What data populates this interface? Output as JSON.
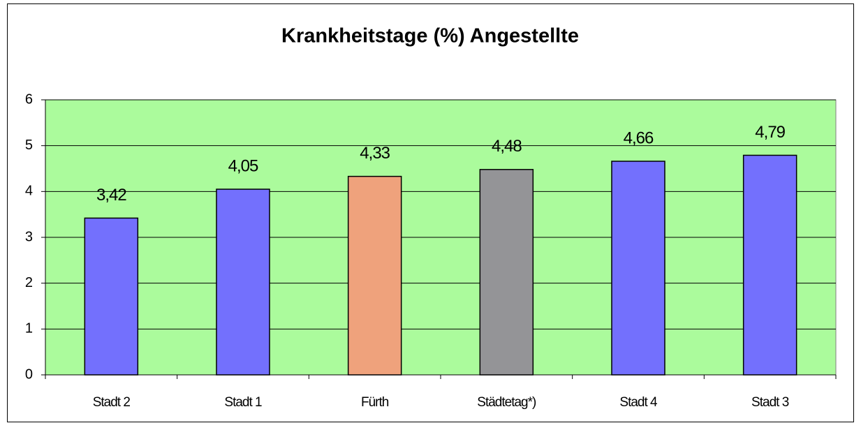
{
  "chart_data": {
    "type": "bar",
    "title": "Krankheitstage (%) Angestellte",
    "categories": [
      "Stadt 2",
      "Stadt 1",
      "Fürth",
      "Städtetag*)",
      "Stadt 4",
      "Stadt 3"
    ],
    "values": [
      3.42,
      4.05,
      4.33,
      4.48,
      4.66,
      4.79
    ],
    "value_labels": [
      "3,42",
      "4,05",
      "4,33",
      "4,48",
      "4,66",
      "4,79"
    ],
    "colors": [
      "#7370fd",
      "#7370fd",
      "#efa27c",
      "#949497",
      "#7370fd",
      "#7370fd"
    ],
    "background": "#abfb9c",
    "ylim": [
      0,
      6
    ],
    "yticks": [
      0,
      1,
      2,
      3,
      4,
      5,
      6
    ],
    "grid": true
  }
}
